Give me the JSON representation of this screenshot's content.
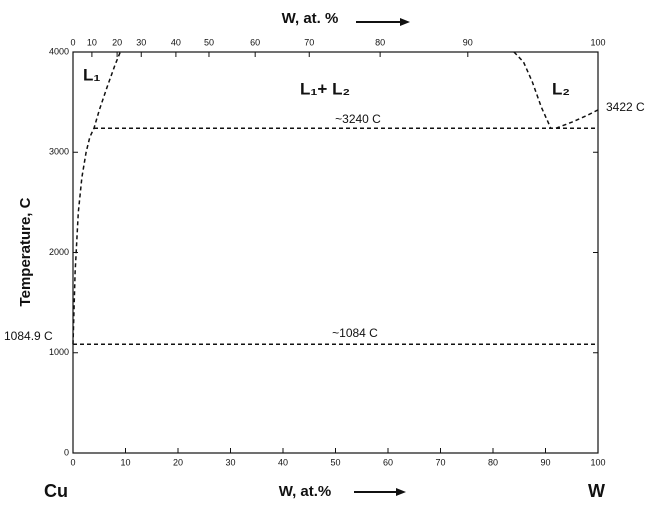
{
  "chart_data": {
    "type": "line",
    "xlabel": "W, at.%",
    "x2label": "W, at. %",
    "ylabel": "Temperature, C",
    "xlim": [
      0,
      100
    ],
    "ylim": [
      0,
      4000
    ],
    "xticks": [
      0,
      10,
      20,
      30,
      40,
      50,
      60,
      70,
      80,
      90,
      100
    ],
    "x2ticks": [
      {
        "value": 0,
        "label": "0"
      },
      {
        "value": 3.6,
        "label": "10"
      },
      {
        "value": 8.4,
        "label": "20"
      },
      {
        "value": 13,
        "label": "30"
      },
      {
        "value": 19.6,
        "label": "40"
      },
      {
        "value": 25.9,
        "label": "50"
      },
      {
        "value": 34.7,
        "label": "60"
      },
      {
        "value": 45,
        "label": "70"
      },
      {
        "value": 58.5,
        "label": "80"
      },
      {
        "value": 75.2,
        "label": "90"
      },
      {
        "value": 100,
        "label": "100"
      }
    ],
    "yticks": [
      0,
      1000,
      2000,
      3000,
      4000
    ],
    "color": "#111111",
    "series": [
      {
        "x": [
          0,
          0.4,
          1,
          1.7,
          2.5,
          3.2,
          4,
          5,
          6.5,
          8,
          9
        ],
        "values": [
          1084.9,
          1800,
          2400,
          2750,
          3000,
          3150,
          3240,
          3420,
          3650,
          3870,
          4000
        ]
      },
      {
        "x": [
          84,
          85.8,
          87.5,
          89.2,
          91
        ],
        "values": [
          4000,
          3900,
          3700,
          3450,
          3240
        ]
      },
      {
        "x": [
          92,
          95,
          98,
          100
        ],
        "values": [
          3240,
          3300,
          3370,
          3422
        ]
      },
      {
        "x": [
          4,
          100
        ],
        "values": [
          3240,
          3240
        ]
      },
      {
        "x": [
          0,
          100
        ],
        "values": [
          1084,
          1084
        ]
      }
    ],
    "annotations": {
      "l1": "L₁",
      "l2": "L₂",
      "l1l2": "L₁+ L₂",
      "t3240": "~3240 C",
      "t1084": "~1084 C",
      "cu_melt": "1084.9 C",
      "w_melt": "3422 C",
      "left_element": "Cu",
      "right_element": "W"
    }
  }
}
